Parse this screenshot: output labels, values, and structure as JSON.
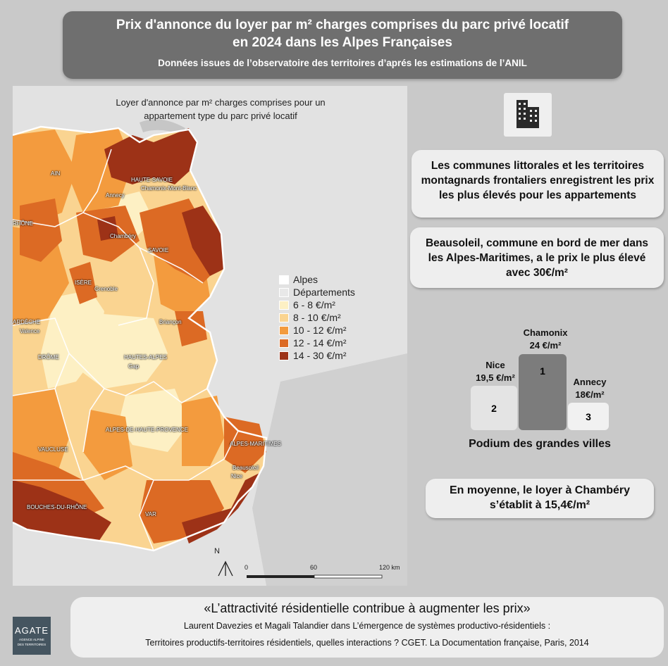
{
  "header": {
    "title_line1": "Prix d'annonce du loyer par m² charges comprises du parc privé locatif",
    "title_line2": "en 2024 dans les Alpes Françaises",
    "subtitle": "Données issues de l’observatoire des territoires d’aprés les estimations de l’ANIL"
  },
  "map": {
    "title_line1": "Loyer d'annonce par m² charges comprises pour un",
    "title_line2": "appartement type du parc privé locatif",
    "legend": {
      "alpes": "Alpes",
      "departements": "Départements",
      "classes": [
        {
          "label": "6 - 8 €/m²",
          "color": "#fdf0c4"
        },
        {
          "label": "8 - 10 €/m²",
          "color": "#fad491"
        },
        {
          "label": "10 - 12 €/m²",
          "color": "#f39b3e"
        },
        {
          "label": "12 - 14 €/m²",
          "color": "#dc6a24"
        },
        {
          "label": "14 - 30 €/m²",
          "color": "#9d3217"
        }
      ]
    },
    "labels": {
      "ain": "AIN",
      "haute_savoie": "HAUTE-SAVOIE",
      "annecy": "Annecy",
      "chamonix": "Chamonix-Mont-Blanc",
      "rhone": "RHÔNE",
      "chambery": "Chambéry",
      "savoie": "SAVOIE",
      "isere": "ISÈRE",
      "grenoble": "Grenoble",
      "ardeche": "ARDÈCHE",
      "valence": "Valence",
      "briancon": "Briançon",
      "drome": "DRÔME",
      "hautes_alpes": "HAUTES-ALPES",
      "gap": "Gap",
      "ahp": "ALPES-DE-HAUTE-PROVENCE",
      "vaucluse": "VAUCLUSE",
      "alpes_maritimes": "ALPES-MARITIMES",
      "beausoleil": "Beausoleil",
      "nice": "Nice",
      "bdr": "BOUCHES-DU-RHÔNE",
      "var": "VAR"
    },
    "north": "N",
    "scale": [
      "0",
      "60",
      "120 km"
    ]
  },
  "cards": {
    "littoral": "Les communes littorales et les territoires montagnards frontaliers enregistrent les prix les plus élevés pour les appartements",
    "beausoleil": "Beausoleil, commune en bord de mer dans les Alpes-Maritimes, a le prix le plus élevé avec 30€/m²",
    "chambery": "En moyenne, le loyer à Chambéry s’établit à 15,4€/m²"
  },
  "podium": {
    "first": {
      "city": "Chamonix",
      "price": "24 €/m²",
      "rank": "1",
      "value": 24
    },
    "second": {
      "city": "Nice",
      "price": "19,5 €/m²",
      "rank": "2",
      "value": 19.5
    },
    "third": {
      "city": "Annecy",
      "price": "18€/m²",
      "rank": "3",
      "value": 18
    },
    "caption": "Podium des grandes villes"
  },
  "quote": {
    "line1": "«L’attractivité résidentielle contribue à augmenter les prix»",
    "line2": "Laurent Davezies et Magali Talandier dans L’émergence de systèmes productivo-résidentiels :",
    "line3": "Territoires productifs-territoires résidentiels, quelles interactions ? CGET. La Documentation française, Paris, 2014"
  },
  "logo": {
    "name": "AGATE",
    "tagline1": "AGENCE ALPINE",
    "tagline2": "DES TERRITOIRES"
  }
}
